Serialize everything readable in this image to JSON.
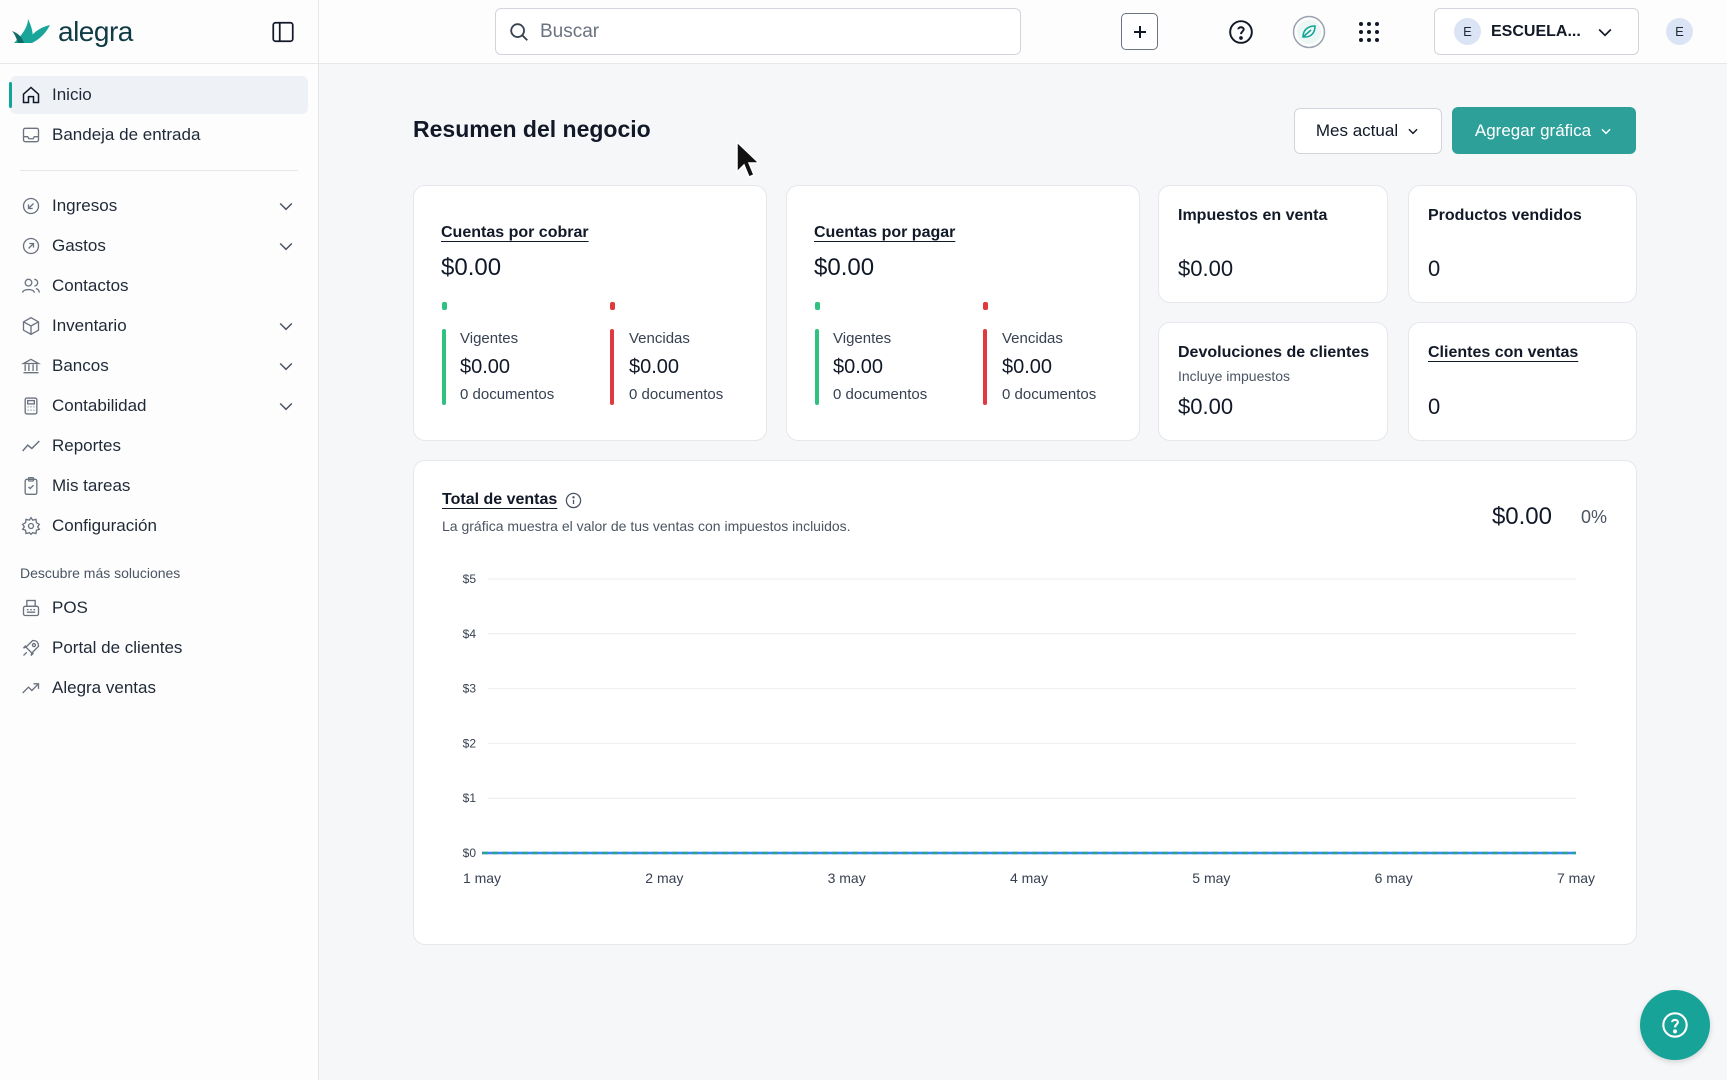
{
  "brand": {
    "name": "alegra",
    "accent": "#2ea09a",
    "logo_color": "#0f3b44"
  },
  "sidebar": {
    "items": [
      {
        "label": "Inicio",
        "icon": "home-icon",
        "active": true
      },
      {
        "label": "Bandeja de entrada",
        "icon": "inbox-icon"
      },
      {
        "label": "Ingresos",
        "icon": "income-icon",
        "expandable": true
      },
      {
        "label": "Gastos",
        "icon": "expense-icon",
        "expandable": true
      },
      {
        "label": "Contactos",
        "icon": "contacts-icon"
      },
      {
        "label": "Inventario",
        "icon": "box-icon",
        "expandable": true
      },
      {
        "label": "Bancos",
        "icon": "bank-icon",
        "expandable": true
      },
      {
        "label": "Contabilidad",
        "icon": "calculator-icon",
        "expandable": true
      },
      {
        "label": "Reportes",
        "icon": "chart-line-icon"
      },
      {
        "label": "Mis tareas",
        "icon": "clipboard-icon"
      },
      {
        "label": "Configuración",
        "icon": "gear-icon"
      }
    ],
    "section_title": "Descubre más soluciones",
    "solutions": [
      {
        "label": "POS",
        "icon": "pos-icon"
      },
      {
        "label": "Portal de clientes",
        "icon": "rocket-icon"
      },
      {
        "label": "Alegra ventas",
        "icon": "trend-up-icon"
      }
    ]
  },
  "topbar": {
    "search_placeholder": "Buscar",
    "company_initial": "E",
    "company_name": "ESCUELA...",
    "user_initial": "E"
  },
  "main": {
    "title": "Resumen del negocio",
    "period_button": "Mes actual",
    "add_chart_button": "Agregar gráfica"
  },
  "cards": {
    "receivable": {
      "title": "Cuentas por cobrar",
      "amount": "$0.00",
      "current_label": "Vigentes",
      "current_amount": "$0.00",
      "current_docs": "0 documentos",
      "overdue_label": "Vencidas",
      "overdue_amount": "$0.00",
      "overdue_docs": "0 documentos"
    },
    "payable": {
      "title": "Cuentas por pagar",
      "amount": "$0.00",
      "current_label": "Vigentes",
      "current_amount": "$0.00",
      "current_docs": "0 documentos",
      "overdue_label": "Vencidas",
      "overdue_amount": "$0.00",
      "overdue_docs": "0 documentos"
    },
    "sales_tax": {
      "title": "Impuestos en venta",
      "amount": "$0.00"
    },
    "products_sold": {
      "title": "Productos vendidos",
      "amount": "0"
    },
    "returns": {
      "title": "Devoluciones de clientes",
      "note": "Incluye impuestos",
      "amount": "$0.00"
    },
    "clients_with_sales": {
      "title": "Clientes con ventas",
      "amount": "0"
    }
  },
  "colors": {
    "green": "#2ec27e",
    "red": "#e0393e"
  },
  "sales_chart": {
    "title": "Total de ventas",
    "subtitle": "La gráfica muestra el valor de tus ventas con impuestos incluidos.",
    "total": "$0.00",
    "percent": "0%"
  },
  "chart_data": {
    "type": "line",
    "x": [
      "1 may",
      "2 may",
      "3 may",
      "4 may",
      "5 may",
      "6 may",
      "7 may"
    ],
    "series": [
      {
        "values": [
          0,
          0,
          0,
          0,
          0,
          0,
          0
        ],
        "color": "#3b82f6"
      },
      {
        "values": [
          0,
          0,
          0,
          0,
          0,
          0,
          0
        ],
        "color": "#2ea09a"
      }
    ],
    "y_ticks": [
      "$0",
      "$1",
      "$2",
      "$3",
      "$4",
      "$5"
    ],
    "ylim": [
      0,
      5
    ],
    "grid": true
  }
}
